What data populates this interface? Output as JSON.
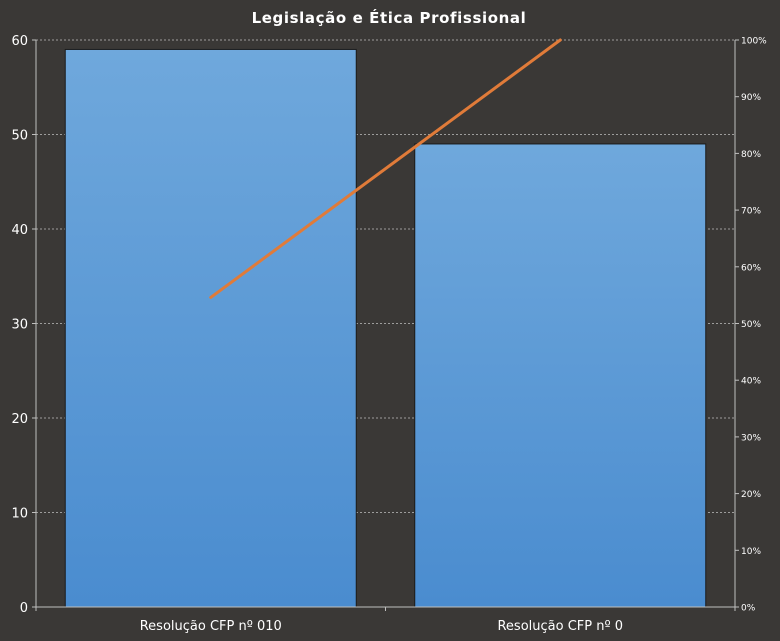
{
  "chart_data": {
    "type": "bar",
    "title": "Legislação e Ética Profissional",
    "categories": [
      "Resolução CFP nº 010",
      "Resolução CFP nº 0"
    ],
    "series": [
      {
        "type": "bar",
        "axis": "left",
        "values": [
          59,
          49
        ],
        "color": "#5b9bd5"
      },
      {
        "type": "line",
        "axis": "right",
        "values": [
          54.6,
          100
        ],
        "color": "#e07b39"
      }
    ],
    "ylim": [
      0,
      60
    ],
    "yticks": [
      "0",
      "10",
      "20",
      "30",
      "40",
      "50",
      "60"
    ],
    "y2lim": [
      0,
      100
    ],
    "y2ticks": [
      "0%",
      "10%",
      "20%",
      "30%",
      "40%",
      "50%",
      "60%",
      "70%",
      "80%",
      "90%",
      "100%"
    ],
    "grid": true,
    "legend": "none",
    "colors": {
      "background": "#3a3836",
      "grid": "#bfbfbf",
      "text": "#ffffff",
      "bar_top": "#6fa8dc",
      "bar_bottom": "#4a8ccf",
      "bar_border": "#1a1a1a",
      "line": "#e07b39"
    }
  }
}
